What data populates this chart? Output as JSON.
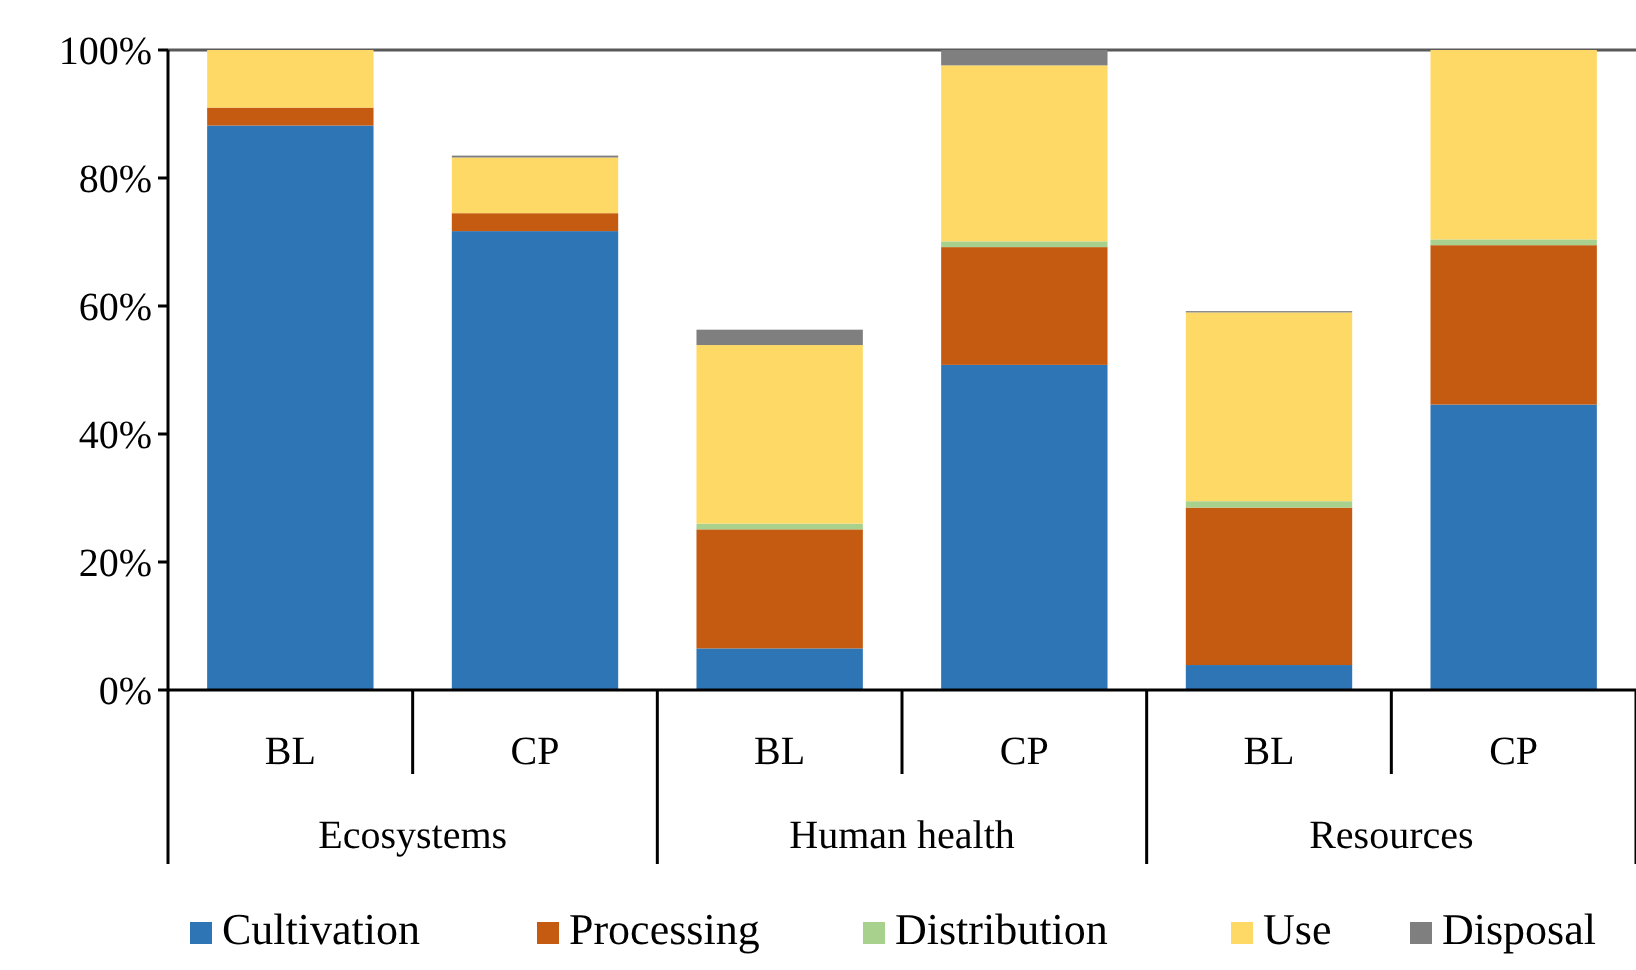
{
  "chart_data": {
    "type": "bar",
    "stacked": true,
    "categories": [
      "BL",
      "CP",
      "BL",
      "CP",
      "BL",
      "CP"
    ],
    "annotations": [
      "Ecosystems",
      "Human health",
      "Resources"
    ],
    "series": [
      {
        "name": "Cultivation",
        "color": "#2e75b6",
        "values": [
          88.2,
          71.7,
          6.5,
          50.8,
          3.9,
          44.6
        ]
      },
      {
        "name": "Processing",
        "color": "#c55a11",
        "values": [
          2.8,
          2.8,
          18.6,
          18.4,
          24.6,
          24.9
        ]
      },
      {
        "name": "Distribution",
        "color": "#a9d18e",
        "values": [
          0,
          0,
          0.9,
          0.9,
          1.0,
          0.9
        ]
      },
      {
        "name": "Use",
        "color": "#ffd966",
        "values": [
          9.0,
          8.7,
          27.9,
          27.5,
          29.5,
          29.6
        ]
      },
      {
        "name": "Disposal",
        "color": "#7f7f7f",
        "values": [
          0,
          0.3,
          2.4,
          2.4,
          0.2,
          0
        ]
      }
    ],
    "ylim": [
      0,
      100
    ],
    "yticks": [
      {
        "value": 0,
        "label": "0%"
      },
      {
        "value": 20,
        "label": "20%"
      },
      {
        "value": 40,
        "label": "40%"
      },
      {
        "value": 60,
        "label": "60%"
      },
      {
        "value": 80,
        "label": "80%"
      },
      {
        "value": 100,
        "label": "100%"
      }
    ],
    "legend": "bottom"
  }
}
